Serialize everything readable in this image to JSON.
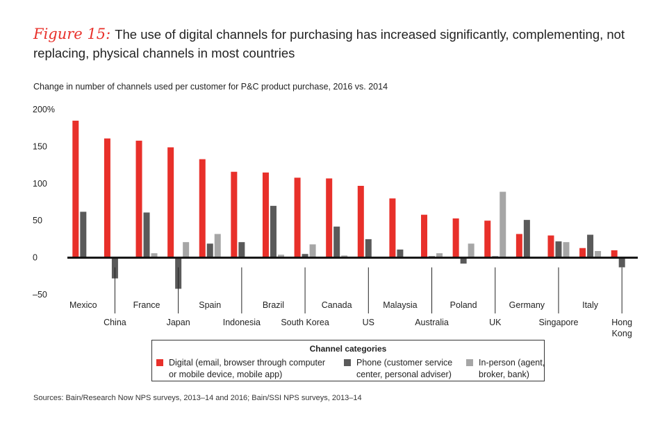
{
  "figure": {
    "label": "Figure 15:",
    "title": "The use of digital channels for purchasing has increased significantly, complementing, not replacing, physical channels in most countries"
  },
  "chart_data": {
    "type": "bar",
    "subtitle": "Change in number of channels used per customer for P&C product purchase, 2016 vs. 2014",
    "ylim": [
      -50,
      200
    ],
    "yticks": [
      {
        "value": 200,
        "label": "200%"
      },
      {
        "value": 150,
        "label": "150"
      },
      {
        "value": 100,
        "label": "100"
      },
      {
        "value": 50,
        "label": "50"
      },
      {
        "value": 0,
        "label": "0"
      },
      {
        "value": -50,
        "label": "–50"
      }
    ],
    "categories": [
      "Mexico",
      "China",
      "France",
      "Japan",
      "Spain",
      "Indonesia",
      "Brazil",
      "South Korea",
      "Canada",
      "US",
      "Malaysia",
      "Australia",
      "Poland",
      "UK",
      "Germany",
      "Singapore",
      "Italy",
      "Hong Kong"
    ],
    "series": [
      {
        "name": "Digital (email, browser through computer or mobile device, mobile app)",
        "color": "#e8302a",
        "values": [
          185,
          161,
          158,
          149,
          133,
          116,
          115,
          108,
          107,
          97,
          80,
          58,
          53,
          50,
          32,
          30,
          13,
          10
        ]
      },
      {
        "name": "Phone (customer service center, personal adviser)",
        "color": "#5a5a5a",
        "values": [
          62,
          -28,
          61,
          -42,
          19,
          21,
          70,
          5,
          42,
          25,
          11,
          2,
          -8,
          2,
          51,
          22,
          31,
          -13
        ]
      },
      {
        "name": "In-person (agent, broker, bank)",
        "color": "#a6a6a6",
        "values": [
          1,
          0,
          6,
          21,
          32,
          0,
          4,
          18,
          3,
          0,
          0,
          6,
          19,
          89,
          1,
          21,
          9,
          0
        ]
      }
    ],
    "legend": {
      "title": "Channel categories",
      "items": [
        {
          "line1": "Digital (email, browser through computer",
          "line2": "or mobile device, mobile app)",
          "color": "#e8302a"
        },
        {
          "line1": "Phone (customer service",
          "line2": "center, personal adviser)",
          "color": "#5a5a5a"
        },
        {
          "line1": "In-person (agent,",
          "line2": "broker, bank)",
          "color": "#a6a6a6"
        }
      ]
    }
  },
  "source": "Sources: Bain/Research Now NPS surveys, 2013–14 and 2016; Bain/SSI NPS surveys, 2013–14"
}
